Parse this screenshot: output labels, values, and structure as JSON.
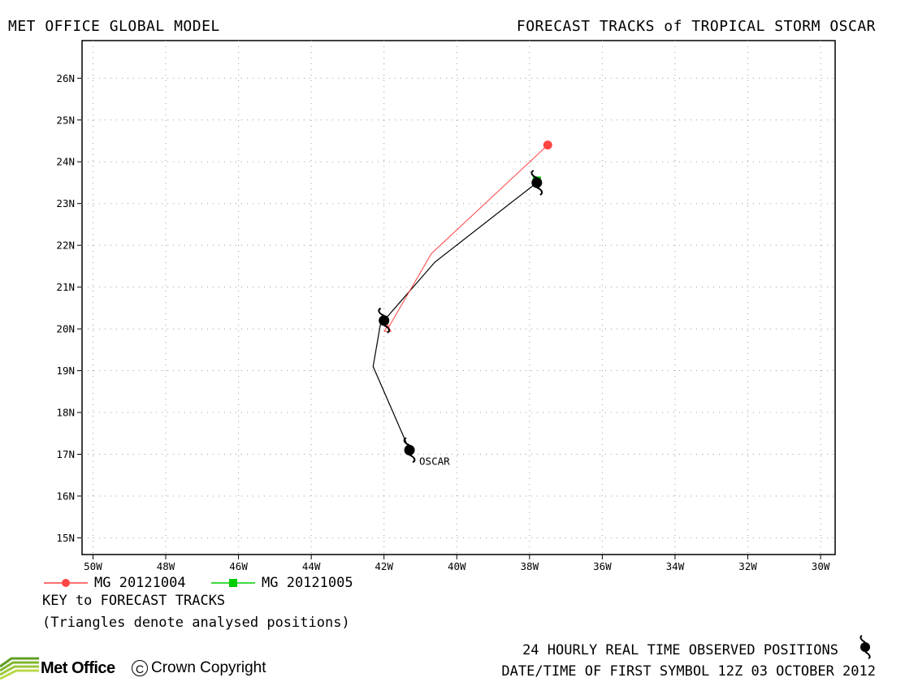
{
  "header": {
    "left_title": "MET OFFICE GLOBAL MODEL",
    "right_title": "FORECAST TRACKS of TROPICAL STORM OSCAR"
  },
  "chart_data": {
    "type": "map",
    "xlim": [
      -50.3,
      -29.6
    ],
    "ylim": [
      14.6,
      26.9
    ],
    "x_ticks": [
      -50,
      -48,
      -46,
      -44,
      -42,
      -40,
      -38,
      -36,
      -34,
      -32,
      -30
    ],
    "x_tick_labels": [
      "50W",
      "48W",
      "46W",
      "44W",
      "42W",
      "40W",
      "38W",
      "36W",
      "34W",
      "32W",
      "30W"
    ],
    "y_ticks": [
      15,
      16,
      17,
      18,
      19,
      20,
      21,
      22,
      23,
      24,
      25,
      26
    ],
    "y_tick_labels": [
      "15N",
      "16N",
      "17N",
      "18N",
      "19N",
      "20N",
      "21N",
      "22N",
      "23N",
      "24N",
      "25N",
      "26N"
    ],
    "grid": true,
    "observed_track": {
      "points": [
        {
          "lon": -41.3,
          "lat": 17.1
        },
        {
          "lon": -42.0,
          "lat": 20.2
        },
        {
          "lon": -37.8,
          "lat": 23.5
        }
      ],
      "label": "OSCAR",
      "color": "#000000"
    },
    "series": [
      {
        "name": "MG 20121004",
        "color": "#ff4444",
        "marker": "circle",
        "points": [
          {
            "lon": -41.9,
            "lat": 20.0
          },
          {
            "lon": -40.7,
            "lat": 21.8
          },
          {
            "lon": -37.5,
            "lat": 24.4
          }
        ]
      },
      {
        "name": "MG 20121005",
        "color": "#00cc00",
        "marker": "square",
        "points": [
          {
            "lon": -37.8,
            "lat": 23.55
          }
        ]
      }
    ],
    "reference_line": {
      "color": "#000000",
      "points": [
        {
          "lon": -41.3,
          "lat": 17.1
        },
        {
          "lon": -42.3,
          "lat": 19.1
        },
        {
          "lon": -42.1,
          "lat": 20.1
        },
        {
          "lon": -40.6,
          "lat": 21.6
        },
        {
          "lon": -37.8,
          "lat": 23.5
        }
      ]
    }
  },
  "key": {
    "title": "KEY to FORECAST TRACKS",
    "note": "(Triangles denote analysed positions)"
  },
  "footer": {
    "observed_text": "24 HOURLY REAL TIME OBSERVED POSITIONS",
    "datetime_text": "DATE/TIME OF FIRST SYMBOL 12Z 03 OCTOBER 2012",
    "logo_text": "Met Office",
    "copyright_text": "Crown Copyright",
    "copyright_symbol": "C"
  }
}
